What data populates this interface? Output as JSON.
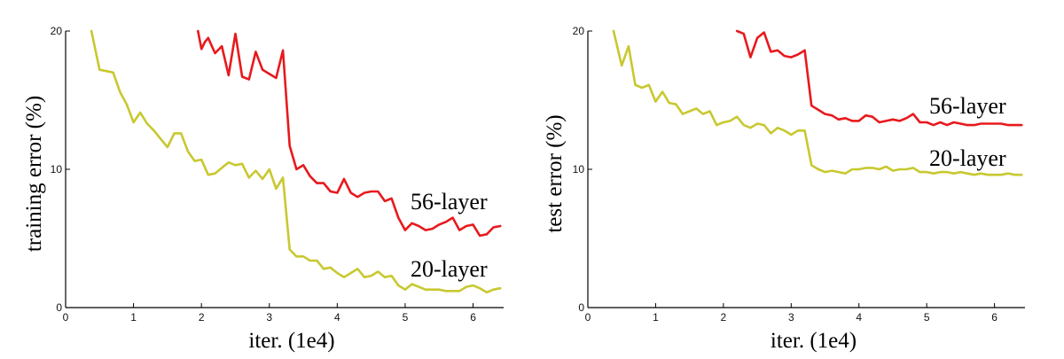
{
  "chart_data": [
    {
      "type": "line",
      "xlabel": "iter. (1e4)",
      "ylabel": "training error (%)",
      "xlim": [
        0,
        6.45
      ],
      "ylim": [
        0,
        20
      ],
      "xticks": [
        "0",
        "1",
        "2",
        "3",
        "4",
        "5",
        "6"
      ],
      "yticks": [
        "0",
        "10",
        "20"
      ],
      "grid": false,
      "series": [
        {
          "name": "56-layer",
          "color": "#e8191d",
          "x": [
            1.95,
            2.0,
            2.05,
            2.1,
            2.2,
            2.3,
            2.4,
            2.5,
            2.6,
            2.7,
            2.8,
            2.9,
            3.0,
            3.1,
            3.2,
            3.3,
            3.4,
            3.5,
            3.6,
            3.7,
            3.8,
            3.9,
            4.0,
            4.1,
            4.2,
            4.3,
            4.4,
            4.5,
            4.6,
            4.7,
            4.8,
            4.9,
            5.0,
            5.1,
            5.2,
            5.3,
            5.4,
            5.5,
            5.6,
            5.7,
            5.8,
            5.9,
            6.0,
            6.1,
            6.2,
            6.3,
            6.4
          ],
          "y": [
            20.0,
            18.7,
            19.2,
            19.5,
            18.4,
            18.9,
            16.8,
            19.8,
            16.7,
            16.5,
            18.5,
            17.2,
            16.9,
            16.6,
            18.6,
            11.7,
            10.0,
            10.3,
            9.5,
            9.0,
            9.0,
            8.4,
            8.3,
            9.3,
            8.3,
            8.0,
            8.3,
            8.4,
            8.4,
            7.7,
            7.9,
            6.5,
            5.6,
            6.1,
            5.9,
            5.6,
            5.7,
            6.0,
            6.2,
            6.5,
            5.6,
            5.9,
            6.0,
            5.2,
            5.3,
            5.8,
            5.9
          ]
        },
        {
          "name": "20-layer",
          "color": "#c8c830",
          "x": [
            0.38,
            0.5,
            0.6,
            0.7,
            0.8,
            0.9,
            1.0,
            1.1,
            1.2,
            1.3,
            1.4,
            1.5,
            1.6,
            1.7,
            1.8,
            1.9,
            2.0,
            2.1,
            2.2,
            2.3,
            2.4,
            2.5,
            2.6,
            2.7,
            2.8,
            2.9,
            3.0,
            3.1,
            3.2,
            3.3,
            3.4,
            3.5,
            3.6,
            3.7,
            3.8,
            3.9,
            4.0,
            4.1,
            4.2,
            4.3,
            4.4,
            4.5,
            4.6,
            4.7,
            4.8,
            4.9,
            5.0,
            5.1,
            5.2,
            5.3,
            5.4,
            5.5,
            5.6,
            5.7,
            5.8,
            5.9,
            6.0,
            6.1,
            6.2,
            6.3,
            6.4
          ],
          "y": [
            20.0,
            17.2,
            17.1,
            17.0,
            15.6,
            14.7,
            13.4,
            14.1,
            13.3,
            12.8,
            12.2,
            11.6,
            12.6,
            12.6,
            11.3,
            10.6,
            10.7,
            9.6,
            9.7,
            10.1,
            10.5,
            10.3,
            10.4,
            9.4,
            9.9,
            9.3,
            10.0,
            8.6,
            9.4,
            4.2,
            3.7,
            3.7,
            3.4,
            3.4,
            2.8,
            2.9,
            2.5,
            2.2,
            2.5,
            2.8,
            2.2,
            2.3,
            2.6,
            2.2,
            2.3,
            1.6,
            1.3,
            1.7,
            1.5,
            1.3,
            1.3,
            1.3,
            1.2,
            1.2,
            1.2,
            1.5,
            1.6,
            1.4,
            1.1,
            1.3,
            1.4
          ]
        }
      ]
    },
    {
      "type": "line",
      "xlabel": "iter. (1e4)",
      "ylabel": "test error (%)",
      "xlim": [
        0,
        6.45
      ],
      "ylim": [
        0,
        20
      ],
      "xticks": [
        "0",
        "1",
        "2",
        "3",
        "4",
        "5",
        "6"
      ],
      "yticks": [
        "0",
        "10",
        "20"
      ],
      "grid": false,
      "series": [
        {
          "name": "56-layer",
          "color": "#e8191d",
          "x": [
            2.2,
            2.3,
            2.4,
            2.5,
            2.6,
            2.7,
            2.8,
            2.9,
            3.0,
            3.1,
            3.2,
            3.3,
            3.4,
            3.5,
            3.6,
            3.7,
            3.8,
            3.9,
            4.0,
            4.1,
            4.2,
            4.3,
            4.4,
            4.5,
            4.6,
            4.7,
            4.8,
            4.9,
            5.0,
            5.1,
            5.2,
            5.3,
            5.4,
            5.5,
            5.6,
            5.7,
            5.8,
            5.9,
            6.0,
            6.1,
            6.2,
            6.3,
            6.4
          ],
          "y": [
            20.0,
            19.8,
            18.1,
            19.5,
            19.9,
            18.5,
            18.6,
            18.2,
            18.1,
            18.3,
            18.6,
            14.6,
            14.3,
            14.0,
            13.9,
            13.6,
            13.7,
            13.5,
            13.5,
            13.9,
            13.8,
            13.4,
            13.5,
            13.6,
            13.5,
            13.7,
            14.0,
            13.4,
            13.4,
            13.2,
            13.4,
            13.2,
            13.4,
            13.3,
            13.2,
            13.2,
            13.3,
            13.3,
            13.3,
            13.3,
            13.2,
            13.2,
            13.2
          ]
        },
        {
          "name": "20-layer",
          "color": "#c8c830",
          "x": [
            0.38,
            0.5,
            0.6,
            0.7,
            0.8,
            0.9,
            1.0,
            1.1,
            1.2,
            1.3,
            1.4,
            1.5,
            1.6,
            1.7,
            1.8,
            1.9,
            2.0,
            2.1,
            2.2,
            2.3,
            2.4,
            2.5,
            2.6,
            2.7,
            2.8,
            2.9,
            3.0,
            3.1,
            3.2,
            3.3,
            3.4,
            3.5,
            3.6,
            3.7,
            3.8,
            3.9,
            4.0,
            4.1,
            4.2,
            4.3,
            4.4,
            4.5,
            4.6,
            4.7,
            4.8,
            4.9,
            5.0,
            5.1,
            5.2,
            5.3,
            5.4,
            5.5,
            5.6,
            5.7,
            5.8,
            5.9,
            6.0,
            6.1,
            6.2,
            6.3,
            6.4
          ],
          "y": [
            20.0,
            17.5,
            18.9,
            16.1,
            15.9,
            16.1,
            14.9,
            15.6,
            14.8,
            14.7,
            14.0,
            14.2,
            14.4,
            14.0,
            14.2,
            13.2,
            13.4,
            13.5,
            13.8,
            13.2,
            13.0,
            13.3,
            13.2,
            12.6,
            13.0,
            12.8,
            12.5,
            12.8,
            12.8,
            10.3,
            10.0,
            9.8,
            9.9,
            9.8,
            9.7,
            10.0,
            10.0,
            10.1,
            10.1,
            10.0,
            10.2,
            9.9,
            10.0,
            10.0,
            10.1,
            9.8,
            9.8,
            9.7,
            9.8,
            9.8,
            9.7,
            9.8,
            9.7,
            9.6,
            9.7,
            9.6,
            9.6,
            9.6,
            9.7,
            9.6,
            9.6
          ]
        }
      ]
    }
  ]
}
